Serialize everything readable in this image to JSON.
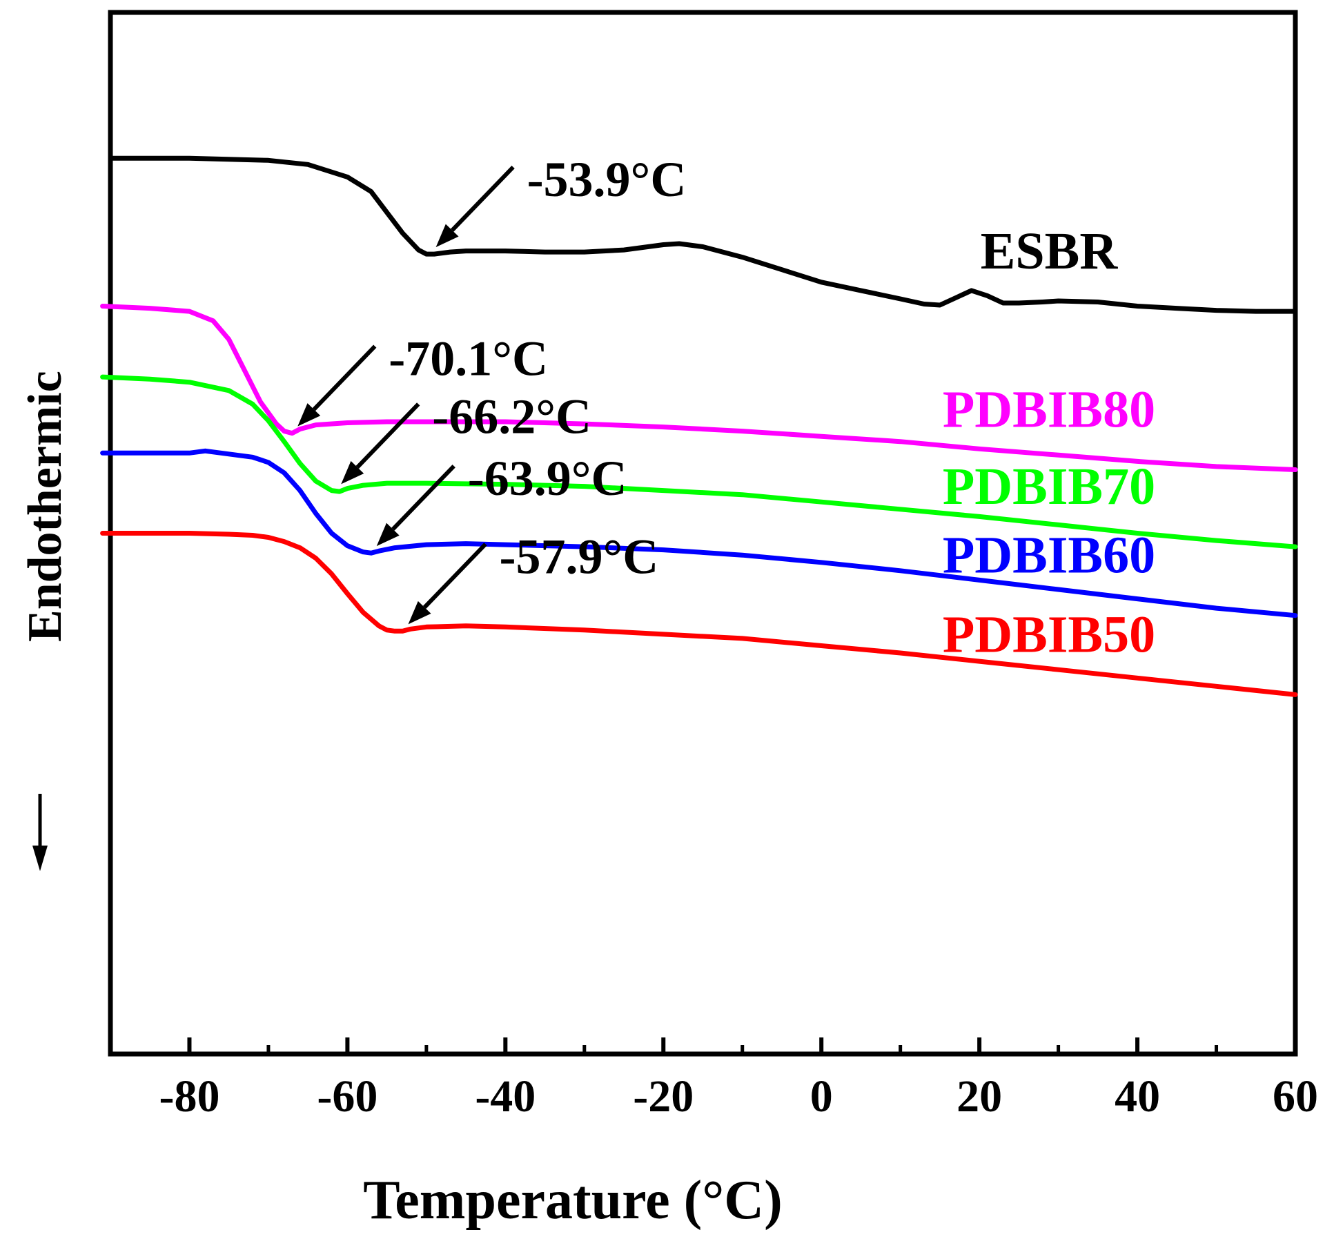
{
  "chart_data": {
    "type": "line",
    "title": "",
    "xlabel": "Temperature (°C)",
    "ylabel": "Endothermic",
    "ylabel_arrow": "down",
    "xlim": [
      -90,
      60
    ],
    "xticks": [
      -80,
      -60,
      -40,
      -20,
      0,
      20,
      40,
      60
    ],
    "xtick_labels": [
      "-80",
      "-60",
      "-40",
      "-20",
      "0",
      "20",
      "40",
      "60"
    ],
    "xminor_step": 10,
    "yticks_shown": false,
    "ylim": [
      0,
      1000
    ],
    "series": [
      {
        "name": "ESBR",
        "color": "#000000",
        "tg_label": "-53.9°C",
        "tg_x": -49.5,
        "x": [
          -90,
          -80,
          -70,
          -65,
          -60,
          -57,
          -55,
          -53,
          -51,
          -50,
          -49,
          -47,
          -45,
          -40,
          -35,
          -30,
          -25,
          -20,
          -18,
          -15,
          -10,
          -5,
          0,
          5,
          10,
          13,
          15,
          17,
          19,
          21,
          23,
          25,
          28,
          30,
          35,
          40,
          45,
          50,
          55,
          60
        ],
        "values": [
          860,
          860,
          858,
          854,
          842,
          828,
          808,
          788,
          772,
          768,
          768,
          770,
          771,
          771,
          770,
          770,
          772,
          777,
          778,
          775,
          765,
          753,
          741,
          733,
          725,
          720,
          719,
          726,
          733,
          728,
          721,
          721,
          722,
          723,
          722,
          718,
          716,
          714,
          713,
          713
        ]
      },
      {
        "name": "PDBIB80",
        "color": "#ff00ff",
        "tg_label": "-70.1°C",
        "tg_x": -67,
        "x": [
          -91,
          -85,
          -80,
          -77,
          -75,
          -73,
          -71,
          -69,
          -68,
          -67,
          -66,
          -64,
          -60,
          -55,
          -50,
          -40,
          -30,
          -20,
          -10,
          0,
          10,
          20,
          30,
          40,
          50,
          60
        ],
        "values": [
          718,
          716,
          713,
          704,
          686,
          656,
          626,
          605,
          598,
          596,
          600,
          604,
          606,
          607,
          607,
          607,
          605,
          602,
          598,
          593,
          588,
          581,
          575,
          569,
          564,
          561
        ]
      },
      {
        "name": "PDBIB70",
        "color": "#00ff00",
        "tg_label": "-66.2°C",
        "tg_x": -61.5,
        "x": [
          -91,
          -85,
          -80,
          -75,
          -72,
          -70,
          -68,
          -66,
          -64,
          -62,
          -61,
          -60,
          -58,
          -55,
          -50,
          -40,
          -30,
          -20,
          -10,
          0,
          10,
          20,
          30,
          40,
          50,
          60
        ],
        "values": [
          650,
          648,
          645,
          637,
          624,
          608,
          588,
          567,
          550,
          541,
          540,
          543,
          546,
          548,
          548,
          547,
          545,
          541,
          537,
          530,
          523,
          516,
          508,
          500,
          493,
          487
        ]
      },
      {
        "name": "PDBIB60",
        "color": "#0000ff",
        "tg_label": "-63.9°C",
        "tg_x": -57,
        "x": [
          -91,
          -85,
          -80,
          -78,
          -76,
          -72,
          -70,
          -68,
          -66,
          -64,
          -62,
          -60,
          -58,
          -57,
          -56,
          -54,
          -50,
          -45,
          -40,
          -30,
          -20,
          -10,
          0,
          10,
          20,
          30,
          40,
          50,
          60
        ],
        "values": [
          577,
          577,
          577,
          579,
          577,
          573,
          568,
          558,
          541,
          519,
          500,
          488,
          482,
          481,
          483,
          486,
          489,
          490,
          489,
          487,
          484,
          479,
          472,
          464,
          455,
          446,
          437,
          428,
          421
        ]
      },
      {
        "name": "PDBIB50",
        "color": "#ff0000",
        "tg_label": "-57.9°C",
        "tg_x": -53,
        "x": [
          -91,
          -85,
          -80,
          -75,
          -72,
          -70,
          -68,
          -66,
          -64,
          -62,
          -60,
          -58,
          -56,
          -55,
          -54,
          -53,
          -52,
          -50,
          -45,
          -40,
          -30,
          -20,
          -10,
          0,
          10,
          20,
          30,
          40,
          50,
          60
        ],
        "values": [
          500,
          500,
          500,
          499,
          498,
          496,
          492,
          486,
          476,
          461,
          442,
          424,
          411,
          407,
          406,
          406,
          408,
          410,
          411,
          410,
          407,
          403,
          399,
          392,
          385,
          377,
          369,
          361,
          353,
          345
        ]
      }
    ]
  }
}
